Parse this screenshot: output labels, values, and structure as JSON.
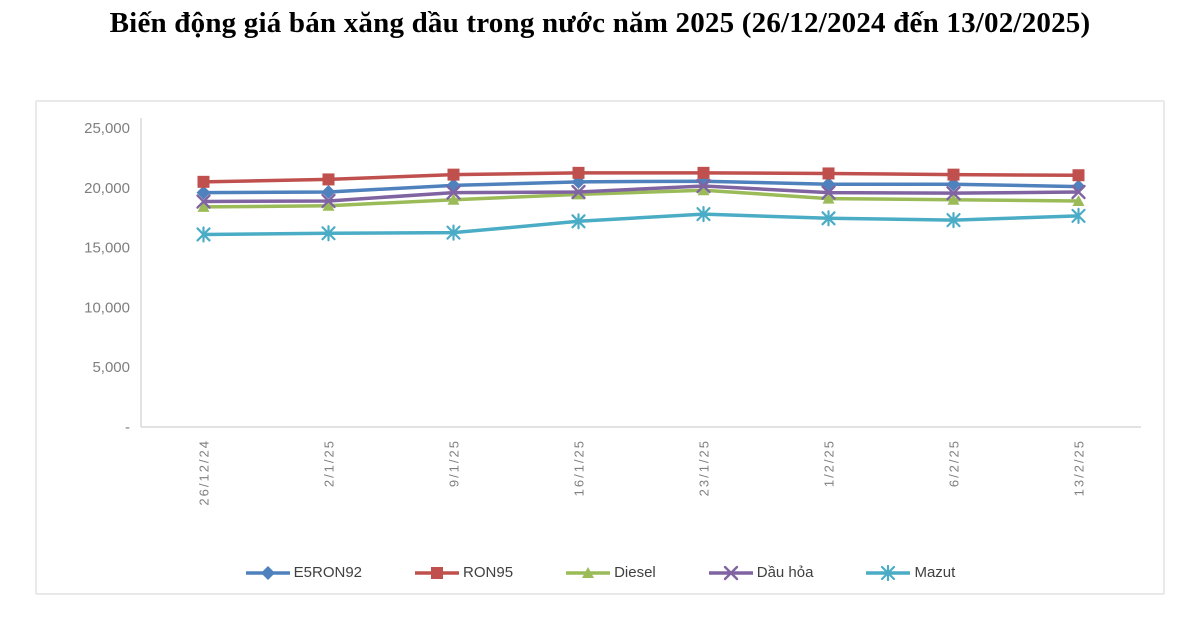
{
  "page": {
    "title": "Biến động giá bán xăng dầu trong nước năm 2025 (26/12/2024 đến 13/02/2025)"
  },
  "chart_data": {
    "type": "line",
    "title": "Biến động giá bán xăng dầu trong nước năm 2025 (26/12/2024 đến 13/02/2025)",
    "categories": [
      "26/12/24",
      "2/1/25",
      "9/1/25",
      "16/1/25",
      "23/1/25",
      "1/2/25",
      "6/2/25",
      "13/2/25"
    ],
    "series": [
      {
        "name": "E5RON92",
        "color": "#4F81BD",
        "marker": "diamond",
        "values": [
          19600,
          19650,
          20200,
          20500,
          20550,
          20300,
          20300,
          20100
        ]
      },
      {
        "name": "RON95",
        "color": "#C0504D",
        "marker": "square",
        "values": [
          20500,
          20700,
          21100,
          21250,
          21250,
          21200,
          21100,
          21050
        ]
      },
      {
        "name": "Diesel",
        "color": "#9BBB59",
        "marker": "triangle",
        "values": [
          18400,
          18500,
          19000,
          19450,
          19800,
          19100,
          19000,
          18900
        ]
      },
      {
        "name": "Dầu hỏa",
        "color": "#8064A2",
        "marker": "x",
        "values": [
          18850,
          18900,
          19600,
          19650,
          20150,
          19600,
          19550,
          19650
        ]
      },
      {
        "name": "Mazut",
        "color": "#4BACC6",
        "marker": "asterisk",
        "values": [
          16100,
          16200,
          16250,
          17200,
          17800,
          17450,
          17300,
          17650
        ]
      }
    ],
    "ylim": [
      0,
      25000
    ],
    "ytick_interval": 5000,
    "ytick_labels": [
      "-",
      "5,000",
      "10,000",
      "15,000",
      "20,000",
      "25,000"
    ],
    "grid": false,
    "legend_position": "bottom",
    "axis_color": "#d9d9d9",
    "tick_label_color": "#7f7f7f",
    "legend_text_color": "#404040"
  }
}
